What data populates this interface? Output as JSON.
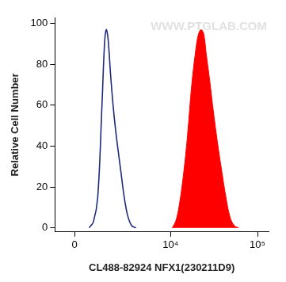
{
  "chart_data": {
    "type": "line",
    "x_label": "CL488-82924 NFX1(230211D9)",
    "y_label": "Relative Cell Number",
    "annotations": [
      "WWW.PTGLAB.COM"
    ],
    "log": "x",
    "grid": false,
    "xlim": [
      -870,
      134000
    ],
    "xticks": [
      0,
      {
        "value": 10000,
        "label": "10⁴"
      },
      {
        "value": 100000,
        "label": "10⁵"
      }
    ],
    "ylim": [
      -2,
      103
    ],
    "yticks": [
      0,
      20,
      40,
      60,
      80,
      100
    ],
    "series": [
      {
        "type": "line",
        "color": "#1f2a7a",
        "x": [
          630,
          830,
          1040,
          1260,
          1400,
          1500,
          1600,
          1760,
          1920,
          2090,
          2270,
          2470,
          2750,
          3050,
          3440,
          3900
        ],
        "values": [
          0,
          3,
          15,
          60,
          90,
          97,
          93,
          75,
          60,
          48,
          38,
          28,
          15,
          6,
          1,
          0
        ]
      },
      {
        "type": "area",
        "color": "#ff0000",
        "x": [
          10450,
          11440,
          12510,
          14030,
          15710,
          17590,
          19690,
          21080,
          22560,
          24150,
          25850,
          28320,
          30980,
          34690,
          38840,
          43450,
          48640,
          54440,
          60930
        ],
        "values": [
          0,
          3,
          10,
          25,
          45,
          70,
          88,
          95,
          97,
          95,
          85,
          72,
          58,
          42,
          28,
          15,
          5,
          1,
          0
        ]
      }
    ]
  }
}
